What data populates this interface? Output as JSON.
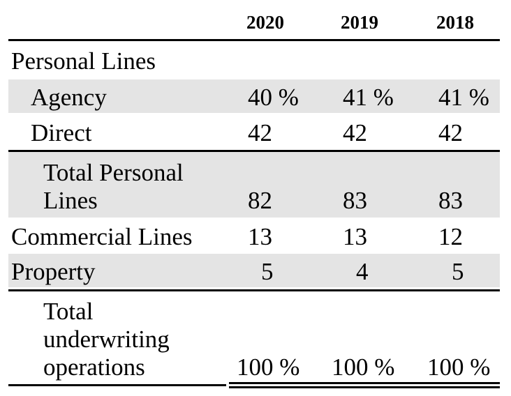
{
  "table": {
    "years": [
      "2020",
      "2019",
      "2018"
    ],
    "section_personal": "Personal Lines",
    "rows": {
      "agency": {
        "label": "Agency",
        "values": [
          "40 %",
          "41 %",
          "41 %"
        ]
      },
      "direct": {
        "label": "Direct",
        "values": [
          "42",
          "42",
          "42"
        ]
      },
      "total_personal": {
        "label_line1": "Total Personal",
        "label_line2": "Lines",
        "values": [
          "82",
          "83",
          "83"
        ]
      },
      "commercial": {
        "label": "Commercial Lines",
        "values": [
          "13",
          "13",
          "12"
        ]
      },
      "property": {
        "label": "Property",
        "values": [
          "5",
          "4",
          "5"
        ]
      },
      "total_underwriting": {
        "label_line1": "Total",
        "label_line2": "underwriting",
        "label_line3": "operations",
        "values": [
          "100 %",
          "100 %",
          "100 %"
        ]
      }
    }
  }
}
